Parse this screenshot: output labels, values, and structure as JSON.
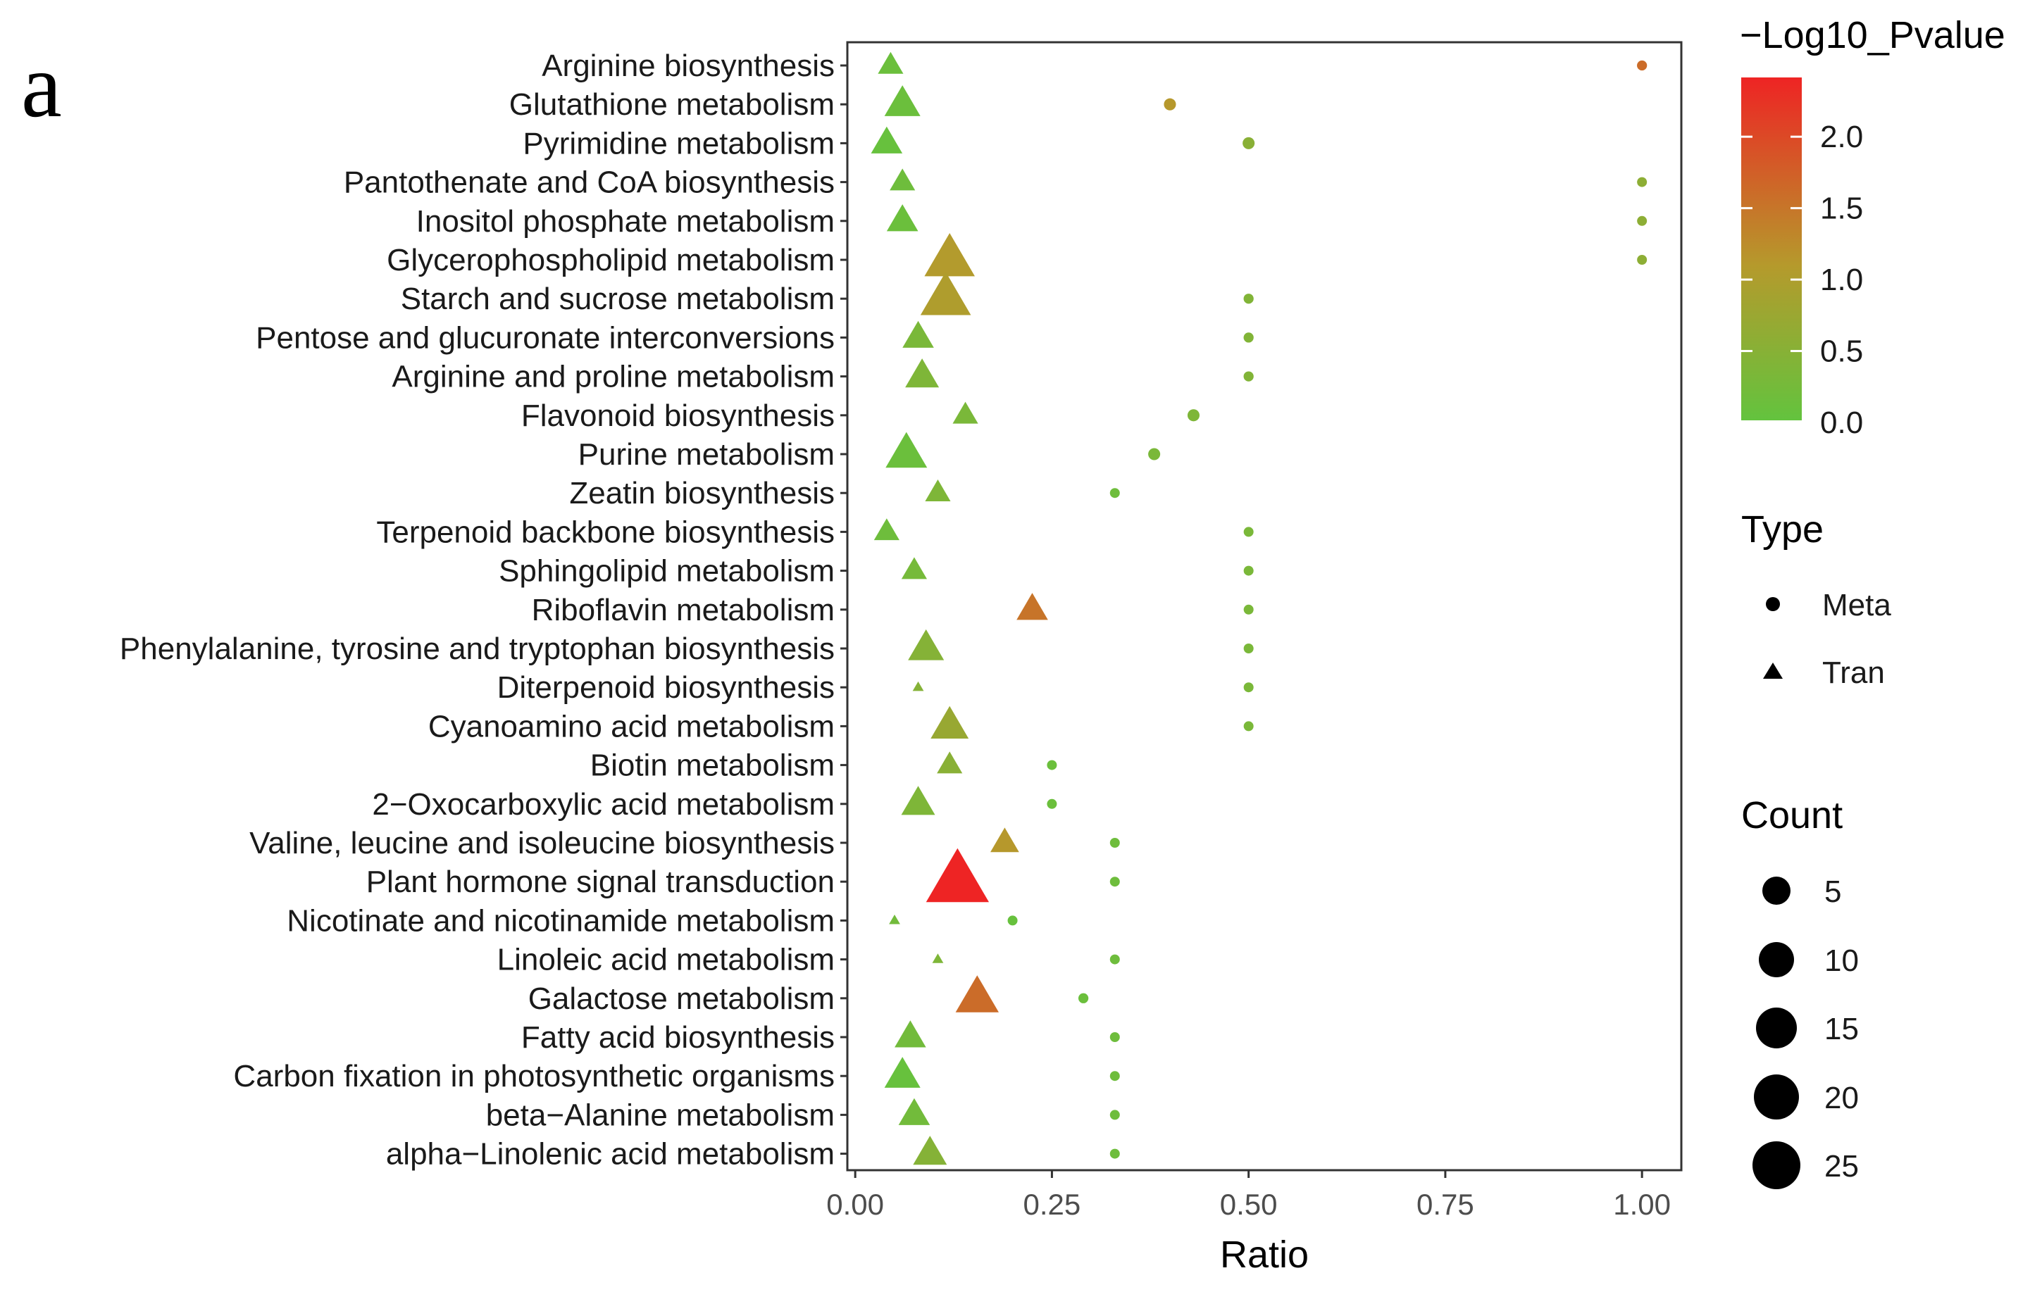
{
  "panel_label": "a",
  "chart_data": {
    "type": "scatter",
    "xlabel": "Ratio",
    "xlim": [
      -0.01,
      1.05
    ],
    "xticks": [
      0.0,
      0.25,
      0.5,
      0.75,
      1.0
    ],
    "xtick_labels": [
      "0.00",
      "0.25",
      "0.50",
      "0.75",
      "1.00"
    ],
    "grid": false,
    "categories": [
      "Arginine biosynthesis",
      "Glutathione metabolism",
      "Pyrimidine metabolism",
      "Pantothenate and CoA biosynthesis",
      "Inositol phosphate metabolism",
      "Glycerophospholipid metabolism",
      "Starch and sucrose metabolism",
      "Pentose and glucuronate interconversions",
      "Arginine and proline metabolism",
      "Flavonoid biosynthesis",
      "Purine metabolism",
      "Zeatin biosynthesis",
      "Terpenoid backbone biosynthesis",
      "Sphingolipid metabolism",
      "Riboflavin metabolism",
      "Phenylalanine, tyrosine and tryptophan biosynthesis",
      "Diterpenoid biosynthesis",
      "Cyanoamino acid metabolism",
      "Biotin metabolism",
      "2−Oxocarboxylic acid metabolism",
      "Valine, leucine and isoleucine biosynthesis",
      "Plant hormone signal transduction",
      "Nicotinate and nicotinamide metabolism",
      "Linoleic acid metabolism",
      "Galactose metabolism",
      "Fatty acid biosynthesis",
      "Carbon fixation in photosynthetic organisms",
      "beta−Alanine metabolism",
      "alpha−Linolenic acid metabolism"
    ],
    "series": [
      {
        "name": "Meta",
        "shape": "circle",
        "points": [
          {
            "category": "Arginine biosynthesis",
            "ratio": 1.0,
            "count": 2,
            "log10p": 1.6
          },
          {
            "category": "Glutathione metabolism",
            "ratio": 0.4,
            "count": 3,
            "log10p": 1.1
          },
          {
            "category": "Pyrimidine metabolism",
            "ratio": 0.5,
            "count": 3,
            "log10p": 0.5
          },
          {
            "category": "Pantothenate and CoA biosynthesis",
            "ratio": 1.0,
            "count": 1,
            "log10p": 0.55
          },
          {
            "category": "Inositol phosphate metabolism",
            "ratio": 1.0,
            "count": 1,
            "log10p": 0.55
          },
          {
            "category": "Glycerophospholipid metabolism",
            "ratio": 1.0,
            "count": 1,
            "log10p": 0.55
          },
          {
            "category": "Starch and sucrose metabolism",
            "ratio": 0.5,
            "count": 2,
            "log10p": 0.4
          },
          {
            "category": "Pentose and glucuronate interconversions",
            "ratio": 0.5,
            "count": 2,
            "log10p": 0.4
          },
          {
            "category": "Arginine and proline metabolism",
            "ratio": 0.5,
            "count": 2,
            "log10p": 0.4
          },
          {
            "category": "Flavonoid biosynthesis",
            "ratio": 0.43,
            "count": 3,
            "log10p": 0.35
          },
          {
            "category": "Purine metabolism",
            "ratio": 0.38,
            "count": 3,
            "log10p": 0.3
          },
          {
            "category": "Zeatin biosynthesis",
            "ratio": 0.33,
            "count": 1,
            "log10p": 0.15
          },
          {
            "category": "Terpenoid backbone biosynthesis",
            "ratio": 0.5,
            "count": 1,
            "log10p": 0.3
          },
          {
            "category": "Sphingolipid metabolism",
            "ratio": 0.5,
            "count": 1,
            "log10p": 0.3
          },
          {
            "category": "Riboflavin metabolism",
            "ratio": 0.5,
            "count": 1,
            "log10p": 0.3
          },
          {
            "category": "Phenylalanine, tyrosine and tryptophan biosynthesis",
            "ratio": 0.5,
            "count": 1,
            "log10p": 0.3
          },
          {
            "category": "Diterpenoid biosynthesis",
            "ratio": 0.5,
            "count": 1,
            "log10p": 0.3
          },
          {
            "category": "Cyanoamino acid metabolism",
            "ratio": 0.5,
            "count": 1,
            "log10p": 0.3
          },
          {
            "category": "Biotin metabolism",
            "ratio": 0.25,
            "count": 1,
            "log10p": 0.1
          },
          {
            "category": "2−Oxocarboxylic acid metabolism",
            "ratio": 0.25,
            "count": 1,
            "log10p": 0.1
          },
          {
            "category": "Valine, leucine and isoleucine biosynthesis",
            "ratio": 0.33,
            "count": 1,
            "log10p": 0.15
          },
          {
            "category": "Plant hormone signal transduction",
            "ratio": 0.33,
            "count": 1,
            "log10p": 0.15
          },
          {
            "category": "Nicotinate and nicotinamide metabolism",
            "ratio": 0.2,
            "count": 1,
            "log10p": 0.05
          },
          {
            "category": "Linoleic acid metabolism",
            "ratio": 0.33,
            "count": 1,
            "log10p": 0.15
          },
          {
            "category": "Galactose metabolism",
            "ratio": 0.29,
            "count": 2,
            "log10p": 0.1
          },
          {
            "category": "Fatty acid biosynthesis",
            "ratio": 0.33,
            "count": 1,
            "log10p": 0.15
          },
          {
            "category": "Carbon fixation in photosynthetic organisms",
            "ratio": 0.33,
            "count": 1,
            "log10p": 0.15
          },
          {
            "category": "beta−Alanine metabolism",
            "ratio": 0.33,
            "count": 1,
            "log10p": 0.15
          },
          {
            "category": "alpha−Linolenic acid metabolism",
            "ratio": 0.33,
            "count": 1,
            "log10p": 0.15
          }
        ]
      },
      {
        "name": "Tran",
        "shape": "triangle",
        "points": [
          {
            "category": "Arginine biosynthesis",
            "ratio": 0.045,
            "count": 3,
            "log10p": 0.1
          },
          {
            "category": "Glutathione metabolism",
            "ratio": 0.06,
            "count": 7,
            "log10p": 0.1
          },
          {
            "category": "Pyrimidine metabolism",
            "ratio": 0.04,
            "count": 5,
            "log10p": 0.05
          },
          {
            "category": "Pantothenate and CoA biosynthesis",
            "ratio": 0.06,
            "count": 3,
            "log10p": 0.15
          },
          {
            "category": "Inositol phosphate metabolism",
            "ratio": 0.06,
            "count": 5,
            "log10p": 0.1
          },
          {
            "category": "Glycerophospholipid metabolism",
            "ratio": 0.12,
            "count": 16,
            "log10p": 1.05
          },
          {
            "category": "Starch and sucrose metabolism",
            "ratio": 0.115,
            "count": 16,
            "log10p": 1.0
          },
          {
            "category": "Pentose and glucuronate interconversions",
            "ratio": 0.08,
            "count": 5,
            "log10p": 0.3
          },
          {
            "category": "Arginine and proline metabolism",
            "ratio": 0.085,
            "count": 6,
            "log10p": 0.35
          },
          {
            "category": "Flavonoid biosynthesis",
            "ratio": 0.14,
            "count": 3,
            "log10p": 0.3
          },
          {
            "category": "Purine metabolism",
            "ratio": 0.065,
            "count": 10,
            "log10p": 0.1
          },
          {
            "category": "Zeatin biosynthesis",
            "ratio": 0.105,
            "count": 3,
            "log10p": 0.35
          },
          {
            "category": "Terpenoid backbone biosynthesis",
            "ratio": 0.04,
            "count": 3,
            "log10p": 0.15
          },
          {
            "category": "Sphingolipid metabolism",
            "ratio": 0.075,
            "count": 3,
            "log10p": 0.25
          },
          {
            "category": "Riboflavin metabolism",
            "ratio": 0.225,
            "count": 5,
            "log10p": 1.5
          },
          {
            "category": "Phenylalanine, tyrosine and tryptophan biosynthesis",
            "ratio": 0.09,
            "count": 7,
            "log10p": 0.45
          },
          {
            "category": "Diterpenoid biosynthesis",
            "ratio": 0.08,
            "count": 1,
            "log10p": 0.45
          },
          {
            "category": "Cyanoamino acid metabolism",
            "ratio": 0.12,
            "count": 8,
            "log10p": 0.7
          },
          {
            "category": "Biotin metabolism",
            "ratio": 0.12,
            "count": 3,
            "log10p": 0.5
          },
          {
            "category": "2−Oxocarboxylic acid metabolism",
            "ratio": 0.08,
            "count": 6,
            "log10p": 0.35
          },
          {
            "category": "Valine, leucine and isoleucine biosynthesis",
            "ratio": 0.19,
            "count": 4,
            "log10p": 1.1
          },
          {
            "category": "Plant hormone signal transduction",
            "ratio": 0.13,
            "count": 27,
            "log10p": 2.4
          },
          {
            "category": "Nicotinate and nicotinamide metabolism",
            "ratio": 0.05,
            "count": 1,
            "log10p": 0.2
          },
          {
            "category": "Linoleic acid metabolism",
            "ratio": 0.105,
            "count": 1,
            "log10p": 0.35
          },
          {
            "category": "Galactose metabolism",
            "ratio": 0.155,
            "count": 11,
            "log10p": 1.6
          },
          {
            "category": "Fatty acid biosynthesis",
            "ratio": 0.07,
            "count": 5,
            "log10p": 0.2
          },
          {
            "category": "Carbon fixation in photosynthetic organisms",
            "ratio": 0.06,
            "count": 7,
            "log10p": 0.05
          },
          {
            "category": "beta−Alanine metabolism",
            "ratio": 0.075,
            "count": 5,
            "log10p": 0.2
          },
          {
            "category": "alpha−Linolenic acid metabolism",
            "ratio": 0.095,
            "count": 6,
            "log10p": 0.45
          }
        ]
      }
    ],
    "legend": {
      "color": {
        "title": "−Log10_Pvalue",
        "range": [
          0,
          2.4
        ],
        "ticks": [
          0.0,
          0.5,
          1.0,
          1.5,
          2.0
        ],
        "tick_labels": [
          "0.0",
          "0.5",
          "1.0",
          "1.5",
          "2.0"
        ],
        "low_color": "#63c33e",
        "mid_color": "#b59a2c",
        "high_color": "#ee2424"
      },
      "type": {
        "title": "Type",
        "items": [
          {
            "label": "Meta",
            "shape": "circle"
          },
          {
            "label": "Tran",
            "shape": "triangle"
          }
        ]
      },
      "count": {
        "title": "Count",
        "items": [
          {
            "label": "5",
            "value": 5
          },
          {
            "label": "10",
            "value": 10
          },
          {
            "label": "15",
            "value": 15
          },
          {
            "label": "20",
            "value": 20
          },
          {
            "label": "25",
            "value": 25
          }
        ]
      },
      "position": "right"
    }
  }
}
